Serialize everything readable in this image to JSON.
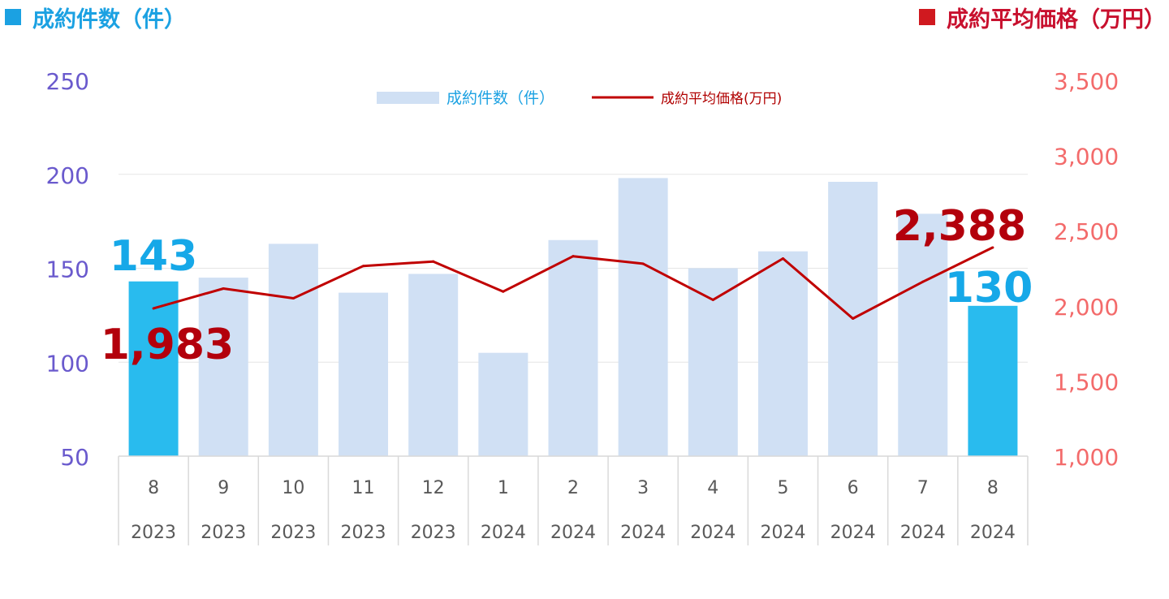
{
  "header": {
    "left_title": "成約件数（件）",
    "right_title": "成約平均価格（万円）",
    "left_color": "#1ba1e2",
    "right_color": "#c8102e"
  },
  "chart_data": {
    "type": "bar",
    "title": "",
    "categories": [
      {
        "month": "8",
        "year": "2023"
      },
      {
        "month": "9",
        "year": "2023"
      },
      {
        "month": "10",
        "year": "2023"
      },
      {
        "month": "11",
        "year": "2023"
      },
      {
        "month": "12",
        "year": "2023"
      },
      {
        "month": "1",
        "year": "2024"
      },
      {
        "month": "2",
        "year": "2024"
      },
      {
        "month": "3",
        "year": "2024"
      },
      {
        "month": "4",
        "year": "2024"
      },
      {
        "month": "5",
        "year": "2024"
      },
      {
        "month": "6",
        "year": "2024"
      },
      {
        "month": "7",
        "year": "2024"
      },
      {
        "month": "8",
        "year": "2024"
      }
    ],
    "series": [
      {
        "name": "成約件数（件）",
        "type": "bar",
        "axis": "left",
        "color": "#d0e0f4",
        "highlight_color": "#29bbee",
        "highlight_indices": [
          0,
          12
        ],
        "values": [
          143,
          145,
          163,
          137,
          147,
          105,
          165,
          198,
          150,
          159,
          196,
          179,
          130
        ]
      },
      {
        "name": "成約平均価格(万円)",
        "type": "line",
        "axis": "right",
        "color": "#c00000",
        "values": [
          1983,
          2115,
          2050,
          2265,
          2295,
          2095,
          2330,
          2280,
          2040,
          2315,
          1915,
          2160,
          2388
        ]
      }
    ],
    "y_left": {
      "min": 50,
      "max": 250,
      "ticks": [
        "50",
        "100",
        "150",
        "200",
        "250"
      ],
      "tick_values": [
        50,
        100,
        150,
        200,
        250
      ],
      "color": "#6a5acd"
    },
    "y_right": {
      "min": 1000,
      "max": 3500,
      "ticks": [
        "1,000",
        "1,500",
        "2,000",
        "2,500",
        "3,000",
        "3,500"
      ],
      "tick_values": [
        1000,
        1500,
        2000,
        2500,
        3000,
        3500
      ],
      "color": "#f36b6b"
    },
    "grid": true,
    "legend_position": "top-center",
    "annotations": [
      {
        "text": "143",
        "series": 0,
        "index": 0,
        "color": "#16a8e8"
      },
      {
        "text": "130",
        "series": 0,
        "index": 12,
        "color": "#16a8e8"
      },
      {
        "text": "1,983",
        "series": 1,
        "index": 0,
        "color": "#b3000c"
      },
      {
        "text": "2,388",
        "series": 1,
        "index": 12,
        "color": "#b3000c"
      }
    ]
  }
}
